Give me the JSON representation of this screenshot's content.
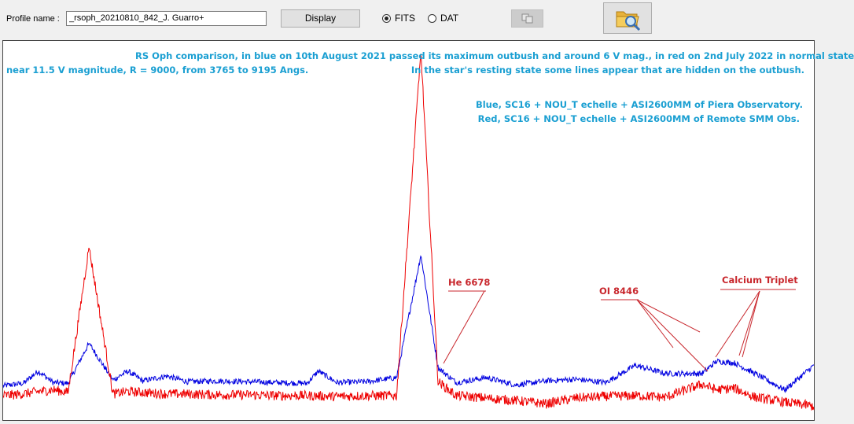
{
  "toolbar": {
    "profile_label": "Profile name :",
    "profile_value": "_rsoph_20210810_842_J. Guarro+",
    "display_label": "Display",
    "radio_fits_label": "FITS",
    "radio_dat_label": "DAT",
    "selected_format": "FITS",
    "copy_icon": "copy-icon",
    "open_icon": "folder-search-icon"
  },
  "plot": {
    "notes": {
      "line1": "RS Oph comparison, in blue on 10th August 2021 passed its maximum outbush and around 6 V mag., in red on 2nd July 2022 in normal state",
      "line2_left": "near 11.5 V magnitude, R = 9000, from 3765 to 9195 Angs.",
      "line2_right": "In the star's resting state some lines appear that are hidden on the outbush.",
      "line3": "Blue, SC16 +  NOU_T echelle + ASI2600MM of Piera Observatory.",
      "line4": "Red, SC16 + NOU_T echelle + ASI2600MM of Remote SMM  Obs."
    },
    "annotations": {
      "he": "He 6678",
      "oi": "OI 8446",
      "ca": "Calcium Triplet"
    },
    "colors": {
      "blue_series": "#0000e0",
      "red_series": "#ee0000",
      "note_text": "#1a9fd2",
      "annotation": "#c8262c"
    }
  },
  "chart_data": {
    "type": "line",
    "x_range": [
      3765,
      9195
    ],
    "series": [
      {
        "color": "#0000e0",
        "x": [
          3765,
          3900,
          4000,
          4101,
          4200,
          4340,
          4500,
          4600,
          4700,
          4861,
          5000,
          5200,
          5400,
          5600,
          5800,
          5876,
          6000,
          6200,
          6400,
          6563,
          6678,
          6800,
          7000,
          7200,
          7400,
          7600,
          7800,
          8000,
          8200,
          8446,
          8542,
          8662,
          8800,
          9000,
          9195
        ],
        "y": [
          0.4,
          0.43,
          0.58,
          0.44,
          0.43,
          0.92,
          0.47,
          0.58,
          0.46,
          0.52,
          0.45,
          0.46,
          0.45,
          0.44,
          0.43,
          0.58,
          0.44,
          0.45,
          0.5,
          2.0,
          0.62,
          0.44,
          0.5,
          0.41,
          0.46,
          0.48,
          0.44,
          0.65,
          0.55,
          0.55,
          0.7,
          0.68,
          0.55,
          0.35,
          0.65
        ]
      },
      {
        "color": "#ee0000",
        "x": [
          3765,
          3900,
          4000,
          4101,
          4200,
          4340,
          4500,
          4600,
          4861,
          5000,
          5200,
          5400,
          5600,
          5800,
          6000,
          6200,
          6400,
          6563,
          6678,
          6800,
          7000,
          7200,
          7400,
          7600,
          7800,
          8000,
          8200,
          8446,
          8542,
          8662,
          8800,
          9000,
          9195
        ],
        "y": [
          0.28,
          0.3,
          0.33,
          0.35,
          0.32,
          2.1,
          0.3,
          0.33,
          0.3,
          0.3,
          0.29,
          0.29,
          0.28,
          0.28,
          0.27,
          0.28,
          0.28,
          4.5,
          0.45,
          0.28,
          0.25,
          0.22,
          0.18,
          0.25,
          0.27,
          0.28,
          0.26,
          0.42,
          0.35,
          0.37,
          0.26,
          0.2,
          0.15
        ]
      }
    ]
  }
}
